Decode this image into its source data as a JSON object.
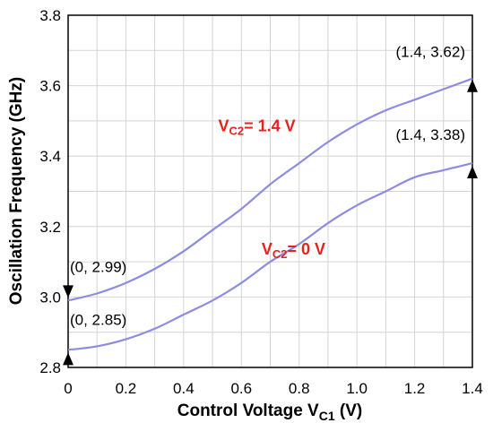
{
  "chart_data": {
    "type": "line",
    "title": "",
    "xlabel": "Control Voltage V",
    "xlabel_sub": "C1",
    "xlabel_unit": " (V)",
    "ylabel": "Oscillation Frequency (GHz)",
    "xlim": [
      0,
      1.4
    ],
    "ylim": [
      2.8,
      3.8
    ],
    "x_ticks": [
      "0",
      "0.2",
      "0.4",
      "0.6",
      "0.8",
      "1.0",
      "1.2",
      "1.4"
    ],
    "y_ticks": [
      "2.8",
      "3.0",
      "3.2",
      "3.4",
      "3.6",
      "3.8"
    ],
    "grid": true,
    "series": [
      {
        "name": "VC2= 1.4 V",
        "label_main": "V",
        "label_sub": "C2",
        "label_rest": "= 1.4 V",
        "color": "#8c8ce0",
        "label_color": "#e8211c",
        "x": [
          0,
          0.1,
          0.2,
          0.3,
          0.4,
          0.5,
          0.6,
          0.7,
          0.8,
          0.9,
          1.0,
          1.1,
          1.2,
          1.3,
          1.4
        ],
        "y": [
          2.99,
          3.01,
          3.04,
          3.08,
          3.13,
          3.19,
          3.25,
          3.32,
          3.38,
          3.44,
          3.49,
          3.53,
          3.56,
          3.59,
          3.62
        ]
      },
      {
        "name": "VC2= 0 V",
        "label_main": "V",
        "label_sub": "C2",
        "label_rest": "= 0 V",
        "color": "#8c8ce0",
        "label_color": "#e8211c",
        "x": [
          0,
          0.1,
          0.2,
          0.3,
          0.4,
          0.5,
          0.6,
          0.7,
          0.8,
          0.9,
          1.0,
          1.1,
          1.2,
          1.3,
          1.4
        ],
        "y": [
          2.85,
          2.86,
          2.88,
          2.91,
          2.95,
          2.99,
          3.04,
          3.1,
          3.15,
          3.21,
          3.26,
          3.3,
          3.34,
          3.36,
          3.38
        ]
      }
    ],
    "annotations": [
      {
        "text": "(0, 2.99)",
        "x": 0,
        "y": 2.99
      },
      {
        "text": "(0, 2.85)",
        "x": 0,
        "y": 2.85
      },
      {
        "text": "(1.4, 3.62)",
        "x": 1.4,
        "y": 3.62
      },
      {
        "text": "(1.4, 3.38)",
        "x": 1.4,
        "y": 3.38
      }
    ]
  }
}
